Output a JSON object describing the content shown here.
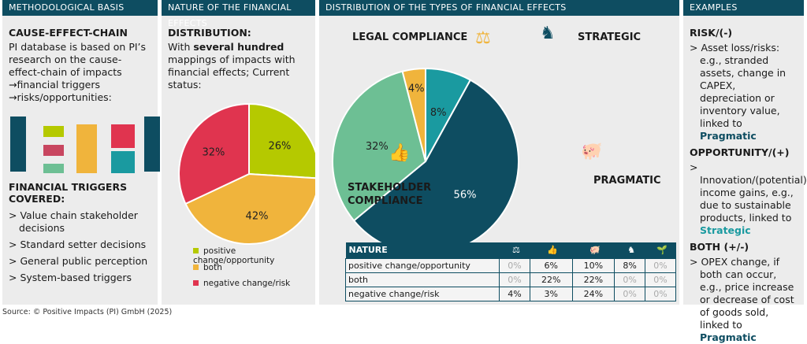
{
  "panels": {
    "method": {
      "header": "METHODOLOGICAL BASIS",
      "title": "CAUSE-EFFECT-CHAIN",
      "text": "PI database is based on PI’s research on the cause-effect-chain of impacts →financial triggers →risks/opportunities:",
      "triggers_title": "FINANCIAL TRIGGERS COVERED:",
      "triggers": [
        "Value chain stakeholder decisions",
        "Standard setter decisions",
        "General public perception",
        "System-based triggers"
      ]
    },
    "nature": {
      "header": "NATURE OF THE FINANCIAL EFFECTS",
      "title": "DISTRIBUTION:",
      "text_pre": "With ",
      "text_bold": "several hundred",
      "text_post": " mappings of impacts with financial effects; Current status:",
      "legend": [
        {
          "label": "positive change/opportunity",
          "color": "#b5c900"
        },
        {
          "label": "both",
          "color": "#f0b43c"
        },
        {
          "label": "negative change/risk",
          "color": "#e0344f"
        }
      ]
    },
    "distribution": {
      "header": "DISTRIBUTION OF THE TYPES OF FINANCIAL EFFECTS",
      "labels": {
        "legal": "LEGAL COMPLIANCE",
        "strategic": "STRATEGIC",
        "stakeholder": "STAKEHOLDER COMPLIANCE",
        "pragmatic": "PRAGMATIC"
      }
    },
    "examples": {
      "header": "EXAMPLES",
      "risk_title": "RISK/(-)",
      "risk_text": "Asset loss/risks: e.g., stranded assets, change in CAPEX, depreciation or inventory value, linked to ",
      "risk_link": "Pragmatic",
      "opp_title": "OPPORTUNITY/(+)",
      "opp_text": "Innovation/(potential) income gains, e.g., due to sustainable products, linked to ",
      "opp_link": "Strategic",
      "both_title": "BOTH (+/-)",
      "both_text": "OPEX change, if both can occur, e.g., price increase or decrease of cost of goods sold, linked to ",
      "both_link": "Pragmatic"
    }
  },
  "chart_data": [
    {
      "type": "pie",
      "categories": [
        "positive change/opportunity",
        "both",
        "negative change/risk"
      ],
      "values": [
        26,
        42,
        32
      ],
      "labels": [
        "26%",
        "42%",
        "32%"
      ],
      "colors": [
        "#b5c900",
        "#f0b43c",
        "#e0344f"
      ],
      "legend": "bottom"
    },
    {
      "type": "pie",
      "categories": [
        "Strategic",
        "Pragmatic",
        "Stakeholder compliance",
        "Legal compliance"
      ],
      "values": [
        8,
        56,
        32,
        4
      ],
      "labels": [
        "8%",
        "56%",
        "32%",
        "4%"
      ],
      "colors": [
        "#1a9aa0",
        "#0e4d61",
        "#6dbf94",
        "#f0b43c"
      ]
    },
    {
      "type": "table",
      "header": "NATURE",
      "columns": [
        "legal-gavel-icon",
        "stakeholder-icon",
        "piggy-bank-icon",
        "chess-knight-icon",
        "hand-plant-icon"
      ],
      "rows": [
        {
          "label": "positive change/opportunity",
          "values": [
            "0%",
            "6%",
            "10%",
            "8%",
            "0%"
          ]
        },
        {
          "label": "both",
          "values": [
            "0%",
            "22%",
            "22%",
            "0%",
            "0%"
          ]
        },
        {
          "label": "negative change/risk",
          "values": [
            "4%",
            "3%",
            "24%",
            "0%",
            "0%"
          ]
        }
      ]
    }
  ],
  "source": "Source: © Positive Impacts (PI) GmbH (2025)"
}
